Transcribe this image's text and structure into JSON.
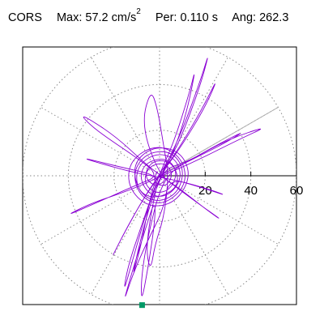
{
  "header": {
    "station": "CORS",
    "max_label": "Max:",
    "max_value": "57.2",
    "max_unit": "cm/s",
    "max_unit_exp": "2",
    "per_label": "Per:",
    "per_value": "0.110 s",
    "ang_label": "Ang:",
    "ang_value": "262.3"
  },
  "chart_data": {
    "type": "polar-particle-motion",
    "r_ticks": [
      20,
      40,
      60
    ],
    "r_tick_labels": [
      "20",
      "40",
      "60"
    ],
    "rmax": 60,
    "spoke_angle_step_deg": 30,
    "grid": true,
    "trace_color": "#8a00d4",
    "marker_color": "#009966",
    "angle_marker_deg": 30,
    "max_point": {
      "angle_deg": 262.3,
      "r": 57.2
    },
    "trace": {
      "sketch": true,
      "points": [
        [
          -1,
          2
        ],
        [
          -3,
          -3
        ],
        [
          3,
          -5
        ],
        [
          6,
          1
        ],
        [
          2,
          6
        ],
        [
          -5,
          4
        ],
        [
          -7,
          -3
        ],
        [
          -2,
          -8
        ],
        [
          5,
          -6
        ],
        [
          8,
          2
        ],
        [
          3,
          8
        ],
        [
          -6,
          6
        ],
        [
          -9,
          -1
        ],
        [
          -4,
          -9
        ],
        [
          4,
          -9
        ],
        [
          10,
          -1
        ],
        [
          7,
          8
        ],
        [
          -2,
          10
        ],
        [
          -10,
          4
        ],
        [
          -10,
          -6
        ],
        [
          -2,
          -12
        ],
        [
          8,
          -8
        ],
        [
          11,
          3
        ],
        [
          5,
          11
        ],
        [
          -6,
          10
        ],
        [
          -12,
          1
        ],
        [
          -8,
          -10
        ],
        [
          2,
          -13
        ],
        [
          12,
          -4
        ],
        [
          10,
          8
        ],
        [
          -1,
          14
        ],
        [
          -13,
          7
        ],
        [
          -14,
          -5
        ],
        [
          -5,
          -14
        ],
        [
          7,
          -12
        ],
        [
          14,
          0
        ],
        [
          9,
          11
        ],
        [
          -3,
          13
        ],
        [
          -12,
          5
        ],
        [
          -9,
          -8
        ],
        [
          0,
          -10
        ],
        [
          9,
          -4
        ],
        [
          6,
          6
        ],
        [
          -3,
          7
        ],
        [
          -7,
          0
        ],
        [
          -2,
          -5
        ],
        [
          3,
          -2
        ],
        [
          1,
          2
        ],
        [
          4,
          6
        ],
        [
          10,
          18
        ],
        [
          18,
          40
        ],
        [
          22,
          55
        ],
        [
          18,
          42
        ],
        [
          10,
          20
        ],
        [
          3,
          5
        ],
        [
          -2,
          -2
        ],
        [
          -5,
          -14
        ],
        [
          -8,
          -30
        ],
        [
          -12,
          -45
        ],
        [
          -10,
          -35
        ],
        [
          -5,
          -15
        ],
        [
          0,
          -2
        ],
        [
          6,
          10
        ],
        [
          12,
          28
        ],
        [
          16,
          48
        ],
        [
          13,
          36
        ],
        [
          6,
          14
        ],
        [
          0,
          1
        ],
        [
          -8,
          -22
        ],
        [
          -14,
          -40
        ],
        [
          -16,
          -52
        ],
        [
          -11,
          -34
        ],
        [
          -4,
          -10
        ],
        [
          2,
          3
        ],
        [
          12,
          6
        ],
        [
          30,
          16
        ],
        [
          48,
          22
        ],
        [
          35,
          16
        ],
        [
          15,
          6
        ],
        [
          1,
          0
        ],
        [
          -12,
          -6
        ],
        [
          -30,
          -12
        ],
        [
          -42,
          -18
        ],
        [
          -28,
          -12
        ],
        [
          -10,
          -4
        ],
        [
          0,
          0
        ],
        [
          -10,
          8
        ],
        [
          -28,
          20
        ],
        [
          -36,
          28
        ],
        [
          -20,
          18
        ],
        [
          -6,
          5
        ],
        [
          2,
          -1
        ],
        [
          14,
          -10
        ],
        [
          28,
          -20
        ],
        [
          22,
          -16
        ],
        [
          8,
          -5
        ],
        [
          0,
          0
        ],
        [
          -8,
          22
        ],
        [
          -4,
          38
        ],
        [
          -1,
          30
        ],
        [
          2,
          12
        ],
        [
          4,
          0
        ],
        [
          2,
          -18
        ],
        [
          -2,
          -30
        ],
        [
          -4,
          -42
        ],
        [
          -6,
          -32
        ],
        [
          -3,
          -12
        ],
        [
          0,
          0
        ],
        [
          9,
          12
        ],
        [
          20,
          30
        ],
        [
          26,
          44
        ],
        [
          18,
          28
        ],
        [
          6,
          8
        ],
        [
          -6,
          -8
        ],
        [
          -16,
          -26
        ],
        [
          -22,
          -38
        ],
        [
          -14,
          -22
        ],
        [
          -4,
          -5
        ],
        [
          0,
          0
        ],
        [
          -18,
          4
        ],
        [
          -34,
          8
        ],
        [
          -28,
          6
        ],
        [
          -10,
          1
        ],
        [
          8,
          -2
        ],
        [
          22,
          -6
        ],
        [
          30,
          -9
        ],
        [
          18,
          -5
        ],
        [
          4,
          -1
        ],
        [
          2,
          -14
        ],
        [
          -6,
          -30
        ],
        [
          -12,
          -44
        ],
        [
          -16,
          -56
        ],
        [
          -12,
          -42
        ],
        [
          -7,
          -26
        ],
        [
          -2,
          -10
        ],
        [
          -2,
          -20
        ],
        [
          -5,
          -40
        ],
        [
          -8,
          -56
        ],
        [
          -8,
          -44
        ],
        [
          -5,
          -26
        ],
        [
          0,
          -6
        ],
        [
          6,
          3
        ],
        [
          16,
          8
        ],
        [
          28,
          14
        ],
        [
          38,
          20
        ],
        [
          26,
          14
        ],
        [
          12,
          6
        ],
        [
          0,
          0
        ]
      ]
    }
  }
}
